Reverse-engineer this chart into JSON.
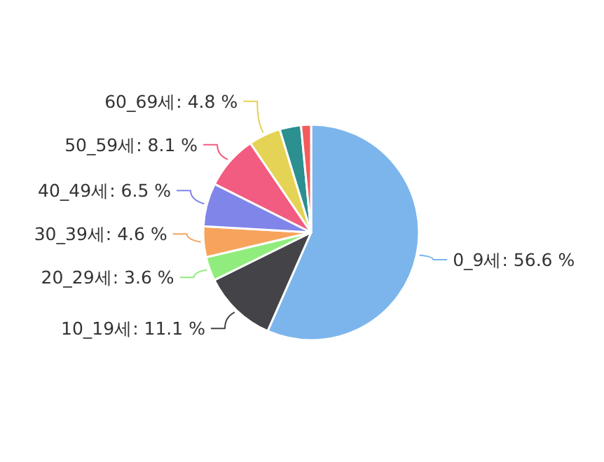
{
  "chart_data": {
    "type": "pie",
    "categories": [
      "0_9세",
      "10_19세",
      "20_29세",
      "30_39세",
      "40_49세",
      "50_59세",
      "60_69세",
      null,
      null
    ],
    "values": [
      56.6,
      11.1,
      3.6,
      4.6,
      6.5,
      8.1,
      4.8,
      3.2,
      1.5
    ],
    "colors": [
      "#7cb5ec",
      "#434348",
      "#90ed7d",
      "#f7a35c",
      "#8085e9",
      "#f15c80",
      "#e4d354",
      "#2b908f",
      "#f45b5b"
    ],
    "value_labels": [
      ": 56.6 %",
      ": 11.1 %",
      ": 3.6 %",
      ": 4.6 %",
      ": 6.5 %",
      ": 8.1 %",
      ": 4.8 %",
      null,
      null
    ]
  }
}
